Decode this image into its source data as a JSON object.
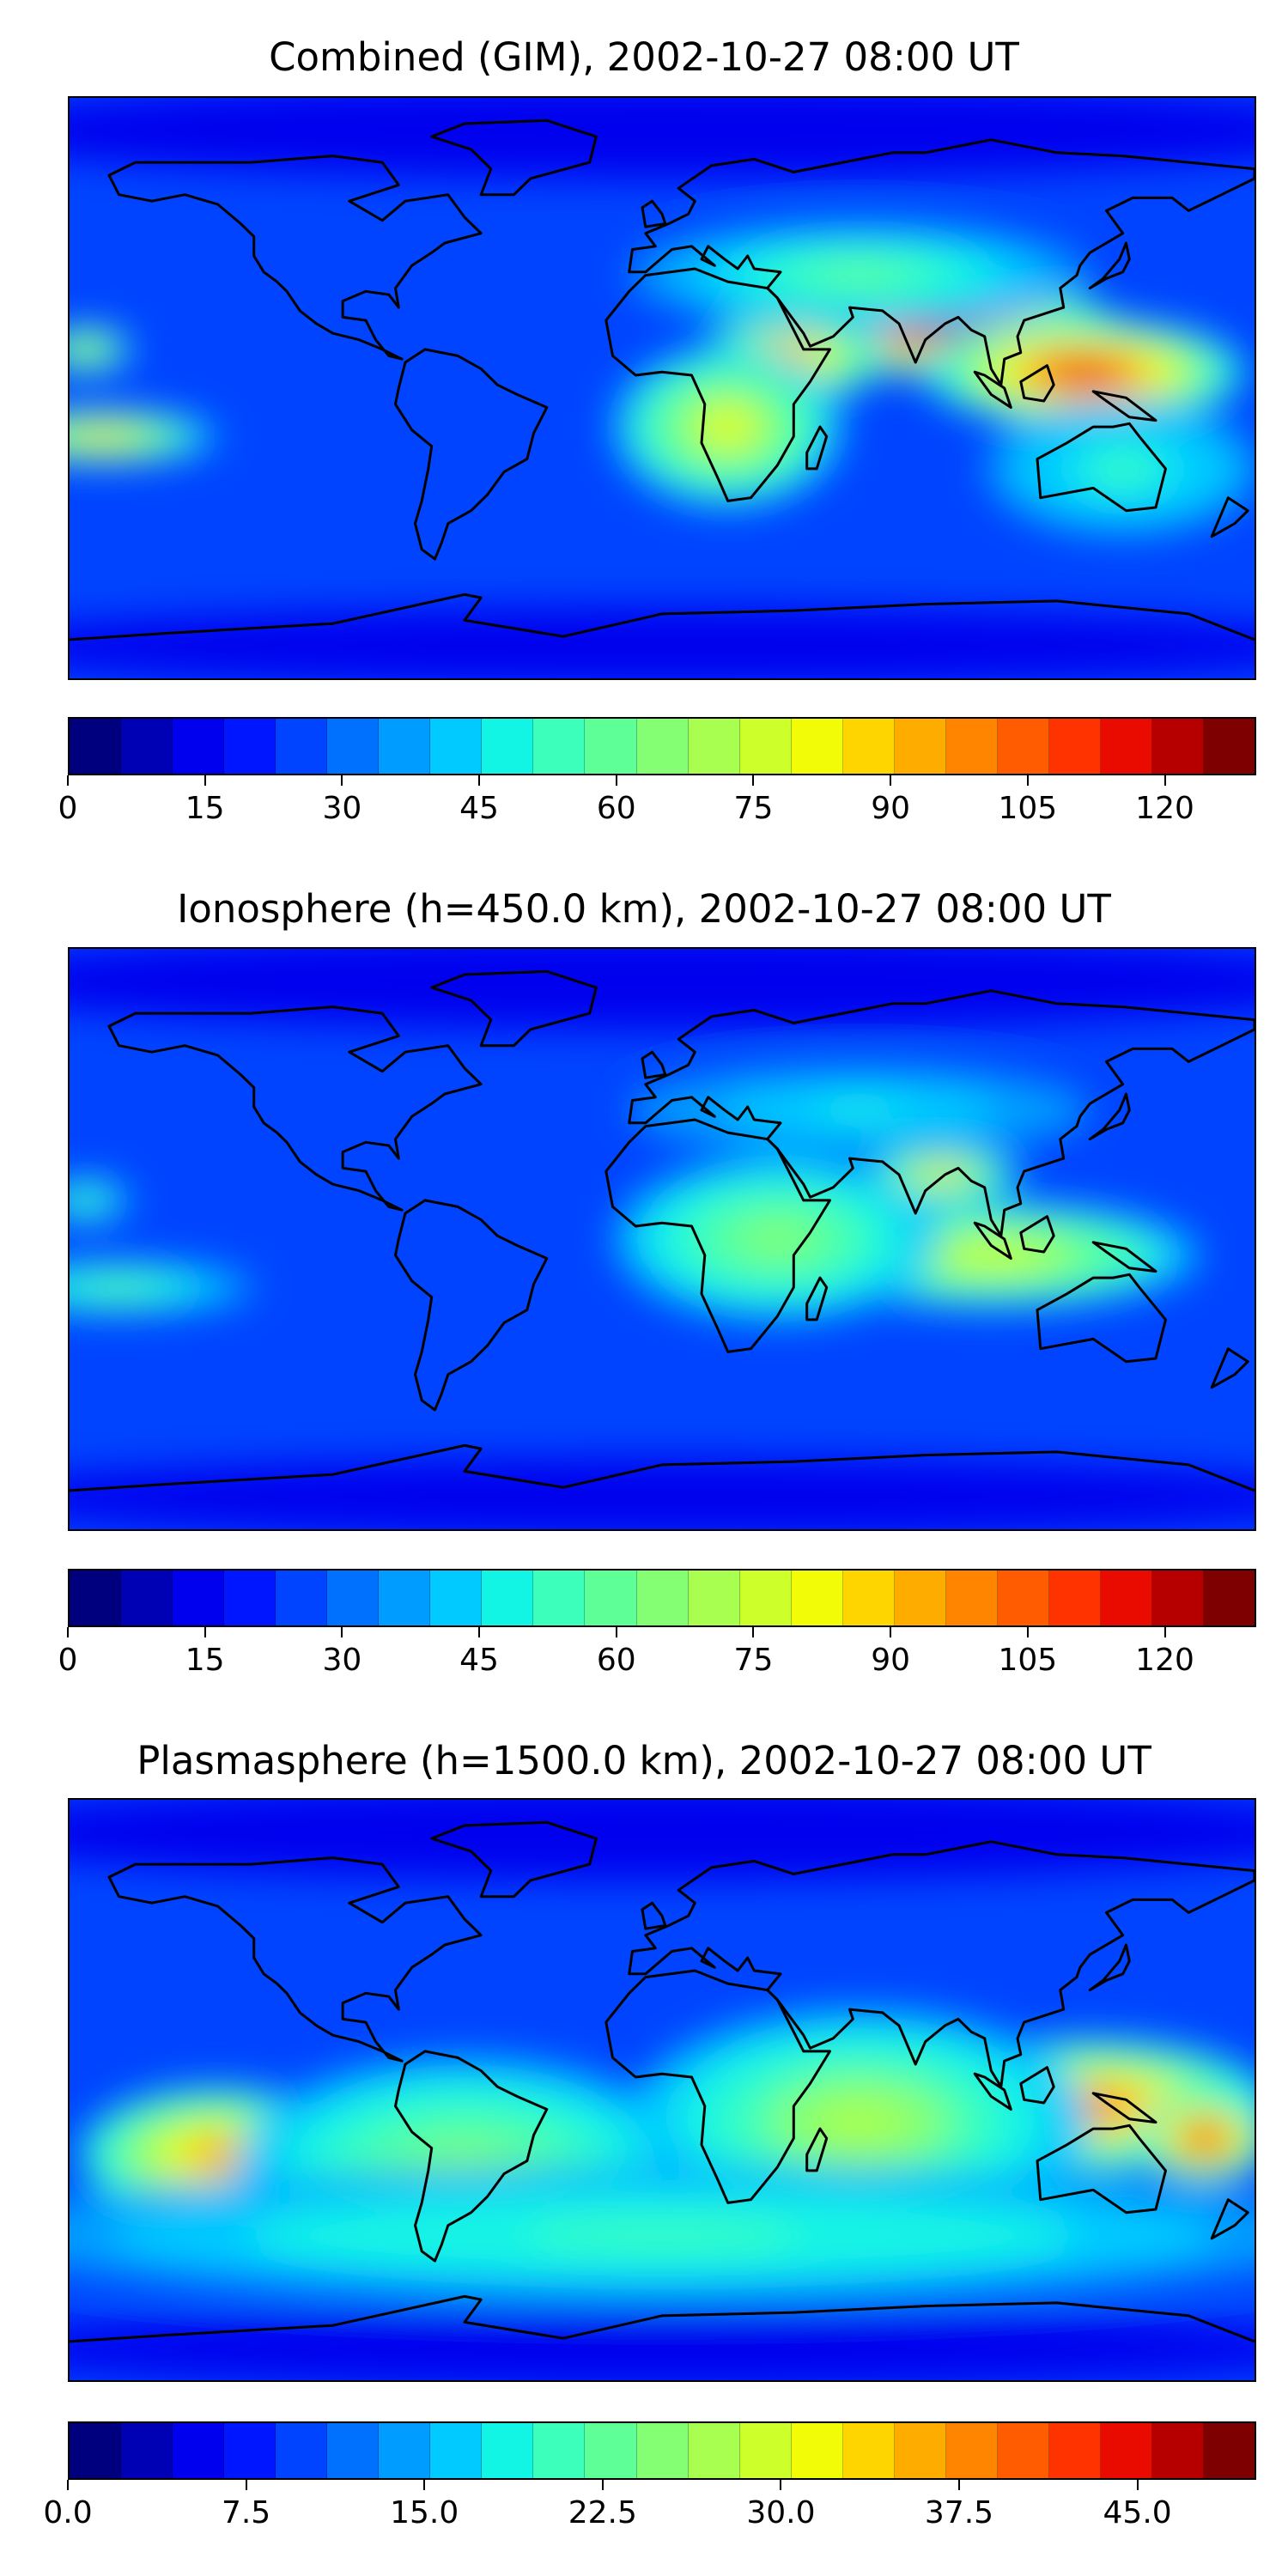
{
  "panels": [
    {
      "title": "Combined (GIM), 2002-10-27 08:00 UT",
      "colorbar_ticks": [
        "0",
        "15",
        "30",
        "45",
        "60",
        "75",
        "90",
        "105",
        "120"
      ],
      "colorbar_min": 0,
      "colorbar_max": 130,
      "hotspots": [
        {
          "lon": 85,
          "lat": 18,
          "rx": 40,
          "ry": 10,
          "level": 0.95
        },
        {
          "lon": 128,
          "lat": 5,
          "rx": 35,
          "ry": 12,
          "level": 0.9
        },
        {
          "lon": 40,
          "lat": 10,
          "rx": 20,
          "ry": 10,
          "level": 0.75
        },
        {
          "lon": 20,
          "lat": -12,
          "rx": 25,
          "ry": 18,
          "level": 0.62
        },
        {
          "lon": -170,
          "lat": -15,
          "rx": 25,
          "ry": 6,
          "level": 0.7
        },
        {
          "lon": -175,
          "lat": 12,
          "rx": 10,
          "ry": 5,
          "level": 0.6
        },
        {
          "lon": 60,
          "lat": 35,
          "rx": 50,
          "ry": 12,
          "level": 0.45
        },
        {
          "lon": 140,
          "lat": -25,
          "rx": 30,
          "ry": 15,
          "level": 0.4
        }
      ]
    },
    {
      "title": "Ionosphere  (h=450.0 km), 2002-10-27 08:00 UT",
      "colorbar_ticks": [
        "0",
        "15",
        "30",
        "45",
        "60",
        "75",
        "90",
        "105",
        "120"
      ],
      "colorbar_min": 0,
      "colorbar_max": 130,
      "hotspots": [
        {
          "lon": 85,
          "lat": 20,
          "rx": 18,
          "ry": 6,
          "level": 0.7
        },
        {
          "lon": 100,
          "lat": -5,
          "rx": 45,
          "ry": 12,
          "level": 0.6
        },
        {
          "lon": 35,
          "lat": 0,
          "rx": 35,
          "ry": 18,
          "level": 0.5
        },
        {
          "lon": -175,
          "lat": 12,
          "rx": 10,
          "ry": 5,
          "level": 0.45
        },
        {
          "lon": -165,
          "lat": -15,
          "rx": 30,
          "ry": 6,
          "level": 0.45
        },
        {
          "lon": 60,
          "lat": 40,
          "rx": 50,
          "ry": 10,
          "level": 0.35
        }
      ]
    },
    {
      "title": "Plasmasphere (h=1500.0 km), 2002-10-27 08:00 UT",
      "colorbar_ticks": [
        "0.0",
        "7.5",
        "15.0",
        "22.5",
        "30.0",
        "37.5",
        "45.0"
      ],
      "colorbar_min": 0,
      "colorbar_max": 50,
      "hotspots": [
        {
          "lon": 130,
          "lat": -5,
          "rx": 40,
          "ry": 15,
          "level": 0.8
        },
        {
          "lon": 165,
          "lat": -15,
          "rx": 15,
          "ry": 10,
          "level": 0.9
        },
        {
          "lon": -135,
          "lat": -20,
          "rx": 30,
          "ry": 15,
          "level": 0.75
        },
        {
          "lon": 60,
          "lat": -10,
          "rx": 50,
          "ry": 25,
          "level": 0.55
        },
        {
          "lon": -60,
          "lat": -25,
          "rx": 50,
          "ry": 25,
          "level": 0.5
        },
        {
          "lon": 0,
          "lat": -45,
          "rx": 150,
          "ry": 15,
          "level": 0.42
        }
      ]
    }
  ],
  "colors": [
    "#00007f",
    "#0000b5",
    "#0000ee",
    "#0016ff",
    "#0044ff",
    "#0070ff",
    "#009cff",
    "#00caff",
    "#12f4e4",
    "#3bffbb",
    "#5fff97",
    "#84ff73",
    "#a8ff4f",
    "#cdff2a",
    "#f1fc06",
    "#ffd500",
    "#ffac00",
    "#ff8400",
    "#ff5b00",
    "#ff3300",
    "#ea0b00",
    "#b60000",
    "#7f0000"
  ]
}
